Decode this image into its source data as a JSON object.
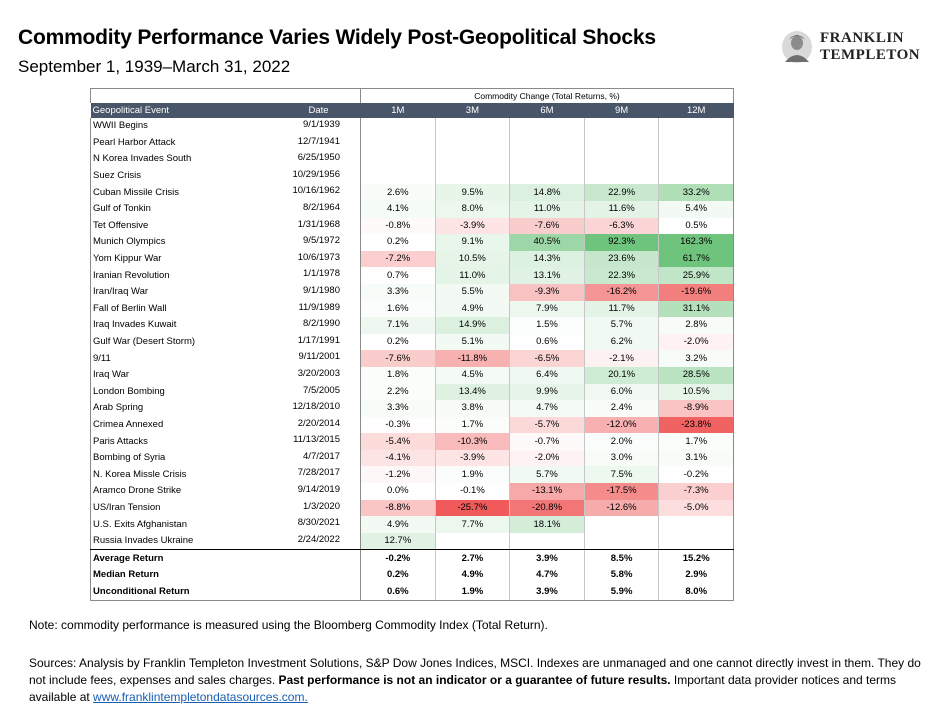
{
  "header": {
    "title": "Commodity Performance Varies Widely Post-Geopolitical Shocks",
    "subtitle": "September 1, 1939–March 31, 2022"
  },
  "logo": {
    "line1": "FRANKLIN",
    "line2": "TEMPLETON"
  },
  "table": {
    "group_label": "Commodity Change (Total Returns, %)",
    "col_event": "Geopolitical Event",
    "col_date": "Date",
    "periods": [
      "1M",
      "3M",
      "6M",
      "9M",
      "12M"
    ],
    "rows": [
      {
        "event": "WWII Begins",
        "date": "9/1/1939",
        "values": [
          "",
          "",
          "",
          "",
          ""
        ]
      },
      {
        "event": "Pearl Harbor Attack",
        "date": "12/7/1941",
        "values": [
          "",
          "",
          "",
          "",
          ""
        ]
      },
      {
        "event": "N Korea Invades South",
        "date": "6/25/1950",
        "values": [
          "",
          "",
          "",
          "",
          ""
        ]
      },
      {
        "event": "Suez Crisis",
        "date": "10/29/1956",
        "values": [
          "",
          "",
          "",
          "",
          ""
        ]
      },
      {
        "event": "Cuban Missile Crisis",
        "date": "10/16/1962",
        "values": [
          "2.6%",
          "9.5%",
          "14.8%",
          "22.9%",
          "33.2%"
        ]
      },
      {
        "event": "Gulf of Tonkin",
        "date": "8/2/1964",
        "values": [
          "4.1%",
          "8.0%",
          "11.0%",
          "11.6%",
          "5.4%"
        ]
      },
      {
        "event": "Tet Offensive",
        "date": "1/31/1968",
        "values": [
          "-0.8%",
          "-3.9%",
          "-7.6%",
          "-6.3%",
          "0.5%"
        ]
      },
      {
        "event": "Munich Olympics",
        "date": "9/5/1972",
        "values": [
          "0.2%",
          "9.1%",
          "40.5%",
          "92.3%",
          "162.3%"
        ]
      },
      {
        "event": "Yom Kippur War",
        "date": "10/6/1973",
        "values": [
          "-7.2%",
          "10.5%",
          "14.3%",
          "23.6%",
          "61.7%"
        ]
      },
      {
        "event": "Iranian Revolution",
        "date": "1/1/1978",
        "values": [
          "0.7%",
          "11.0%",
          "13.1%",
          "22.3%",
          "25.9%"
        ]
      },
      {
        "event": "Iran/Iraq War",
        "date": "9/1/1980",
        "values": [
          "3.3%",
          "5.5%",
          "-9.3%",
          "-16.2%",
          "-19.6%"
        ]
      },
      {
        "event": "Fall of Berlin Wall",
        "date": "11/9/1989",
        "values": [
          "1.6%",
          "4.9%",
          "7.9%",
          "11.7%",
          "31.1%"
        ]
      },
      {
        "event": "Iraq Invades Kuwait",
        "date": "8/2/1990",
        "values": [
          "7.1%",
          "14.9%",
          "1.5%",
          "5.7%",
          "2.8%"
        ]
      },
      {
        "event": "Gulf War (Desert Storm)",
        "date": "1/17/1991",
        "values": [
          "0.2%",
          "5.1%",
          "0.6%",
          "6.2%",
          "-2.0%"
        ]
      },
      {
        "event": " 9/11",
        "date": "9/11/2001",
        "values": [
          "-7.6%",
          "-11.8%",
          "-6.5%",
          "-2.1%",
          "3.2%"
        ]
      },
      {
        "event": "Iraq War",
        "date": "3/20/2003",
        "values": [
          "1.8%",
          "4.5%",
          "6.4%",
          "20.1%",
          "28.5%"
        ]
      },
      {
        "event": "London Bombing",
        "date": "7/5/2005",
        "values": [
          "2.2%",
          "13.4%",
          "9.9%",
          "6.0%",
          "10.5%"
        ]
      },
      {
        "event": "Arab Spring",
        "date": "12/18/2010",
        "values": [
          "3.3%",
          "3.8%",
          "4.7%",
          "2.4%",
          "-8.9%"
        ]
      },
      {
        "event": "Crimea Annexed",
        "date": "2/20/2014",
        "values": [
          "-0.3%",
          "1.7%",
          "-5.7%",
          "-12.0%",
          "-23.8%"
        ]
      },
      {
        "event": "Paris Attacks",
        "date": "11/13/2015",
        "values": [
          "-5.4%",
          "-10.3%",
          "-0.7%",
          "2.0%",
          "1.7%"
        ]
      },
      {
        "event": "Bombing of Syria",
        "date": "4/7/2017",
        "values": [
          "-4.1%",
          "-3.9%",
          "-2.0%",
          "3.0%",
          "3.1%"
        ]
      },
      {
        "event": "N. Korea Missle Crisis",
        "date": "7/28/2017",
        "values": [
          "-1.2%",
          "1.9%",
          "5.7%",
          "7.5%",
          "-0.2%"
        ]
      },
      {
        "event": "Aramco Drone Strike",
        "date": "9/14/2019",
        "values": [
          "0.0%",
          "-0.1%",
          "-13.1%",
          "-17.5%",
          "-7.3%"
        ]
      },
      {
        "event": "US/Iran Tension",
        "date": "1/3/2020",
        "values": [
          "-8.8%",
          "-25.7%",
          "-20.8%",
          "-12.6%",
          "-5.0%"
        ]
      },
      {
        "event": "U.S. Exits Afghanistan",
        "date": "8/30/2021",
        "values": [
          "4.9%",
          "7.7%",
          "18.1%",
          "",
          ""
        ]
      },
      {
        "event": "Russia Invades Ukraine",
        "date": "2/24/2022",
        "values": [
          "12.7%",
          "",
          "",
          "",
          ""
        ]
      }
    ],
    "summary": [
      {
        "label": "Average Return",
        "values": [
          "-0.2%",
          "2.7%",
          "3.9%",
          "8.5%",
          "15.2%"
        ]
      },
      {
        "label": "Median Return",
        "values": [
          "0.2%",
          "4.9%",
          "4.7%",
          "5.8%",
          "2.9%"
        ]
      },
      {
        "label": "Unconditional Return",
        "values": [
          "0.6%",
          "1.9%",
          "3.9%",
          "5.9%",
          "8.0%"
        ]
      }
    ]
  },
  "footer": {
    "note": "Note: commodity performance is measured using the Bloomberg Commodity Index (Total Return).",
    "sources_text": "Sources: Analysis by Franklin Templeton Investment Solutions, S&P Dow Jones Indices, MSCI. Indexes are unmanaged and one cannot directly invest in them. They do not include fees, expenses and sales charges. ",
    "sources_bold": "Past performance is not an indicator or a guarantee of future results.",
    "sources_tail": " Important data provider notices and terms available at ",
    "link_text": "www.franklintempletondatasources.com."
  }
}
